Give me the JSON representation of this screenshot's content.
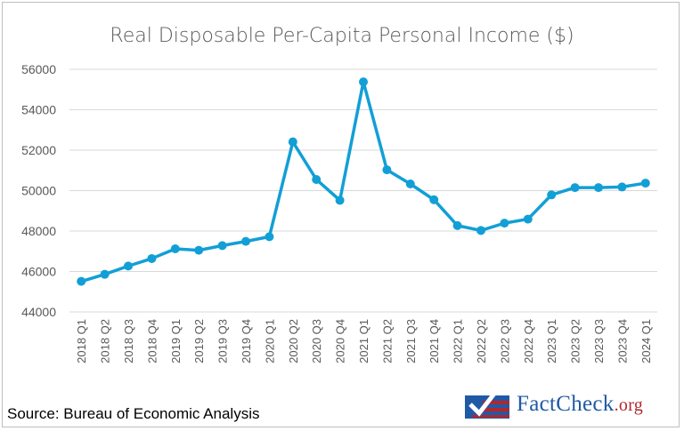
{
  "chart_data": {
    "type": "line",
    "title": "Real Disposable Per-Capita Personal Income ($)",
    "xlabel": "",
    "ylabel": "",
    "categories": [
      "2018 Q1",
      "2018 Q2",
      "2018 Q3",
      "2018 Q4",
      "2019 Q1",
      "2019 Q2",
      "2019 Q3",
      "2019 Q4",
      "2020 Q1",
      "2020 Q2",
      "2020 Q3",
      "2020 Q4",
      "2021 Q1",
      "2021 Q2",
      "2021 Q3",
      "2021 Q4",
      "2022 Q1",
      "2022 Q2",
      "2022 Q3",
      "2022 Q4",
      "2023 Q1",
      "2023 Q2",
      "2023 Q3",
      "2023 Q4",
      "2024 Q1"
    ],
    "values": [
      45510,
      45860,
      46270,
      46640,
      47120,
      47050,
      47280,
      47490,
      47720,
      52410,
      50550,
      49520,
      55380,
      51030,
      50330,
      49550,
      48270,
      48030,
      48390,
      48590,
      49790,
      50150,
      50150,
      50180,
      50370
    ],
    "ylim": [
      44000,
      56000
    ],
    "yticks": [
      44000,
      46000,
      48000,
      50000,
      52000,
      54000,
      56000
    ],
    "grid": true,
    "legend": "none",
    "color": "#129fd6"
  },
  "footer": {
    "source": "Source: Bureau of Economic Analysis",
    "logo_text": "FactCheck",
    "logo_suffix": ".org"
  }
}
